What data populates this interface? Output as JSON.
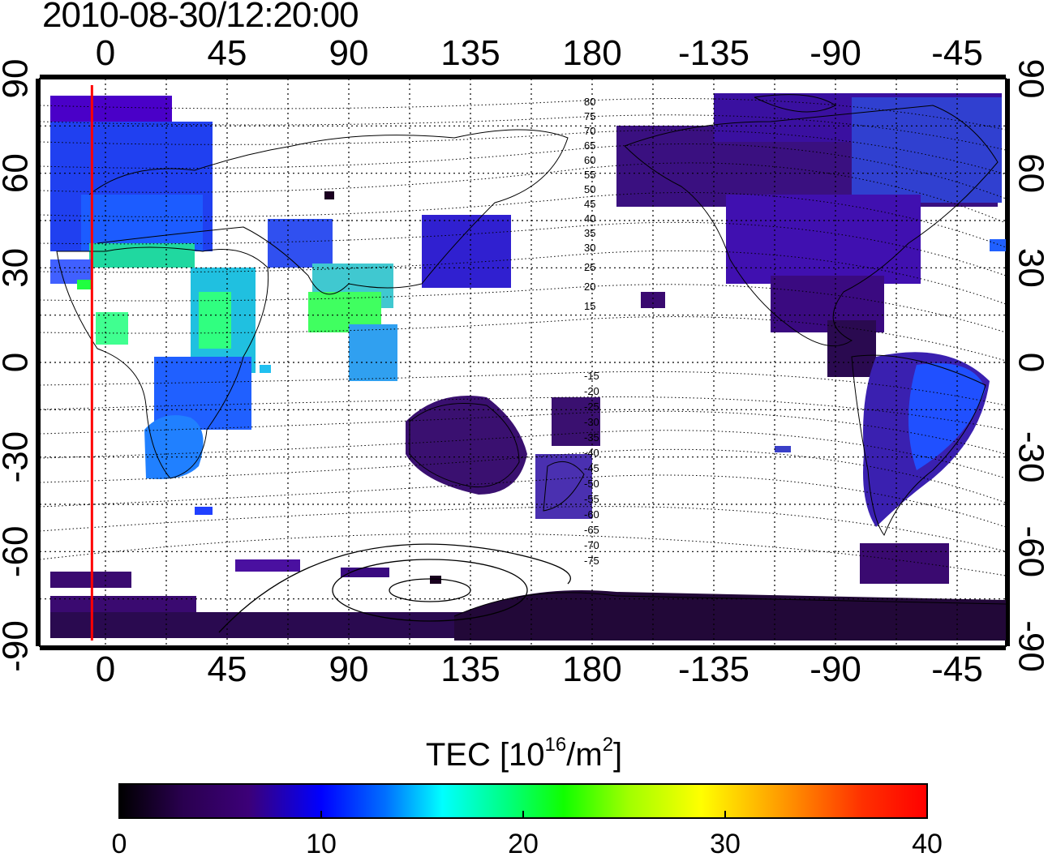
{
  "timestamp": "2010-08-30/12:20:00",
  "map": {
    "top_axis_labels": [
      "0",
      "45",
      "90",
      "135",
      "180",
      "-135",
      "-90",
      "-45"
    ],
    "bottom_axis_labels": [
      "0",
      "45",
      "90",
      "135",
      "180",
      "-135",
      "-90",
      "-45"
    ],
    "left_axis_labels": [
      "90",
      "60",
      "30",
      "0",
      "-30",
      "-60",
      "-90"
    ],
    "right_axis_labels": [
      "90",
      "60",
      "30",
      "0",
      "-30",
      "-60",
      "-90"
    ],
    "contour_labels_north": [
      "80",
      "75",
      "70",
      "65",
      "60",
      "55",
      "50",
      "45",
      "40",
      "35",
      "30",
      "25",
      "20",
      "15"
    ],
    "contour_labels_south": [
      "-15",
      "-20",
      "-25",
      "-30",
      "-35",
      "-40",
      "-45",
      "-50",
      "-55",
      "-60",
      "-65",
      "-70",
      "-75"
    ],
    "marker_line_color": "#ff0000",
    "marker_longitude": -5
  },
  "colorbar": {
    "title_prefix": "TEC  [10",
    "title_sup1": "16",
    "title_mid": "/m",
    "title_sup2": "2",
    "title_suffix": "]",
    "tick_labels": [
      "0",
      "10",
      "20",
      "30",
      "40"
    ],
    "range": [
      0,
      40
    ],
    "colors": [
      "#000000",
      "#3a0066",
      "#4a00a8",
      "#0000ff",
      "#0078ff",
      "#00ffff",
      "#00ff60",
      "#20ff00",
      "#ffff00",
      "#ffa000",
      "#ff2000",
      "#ff0000"
    ]
  }
}
